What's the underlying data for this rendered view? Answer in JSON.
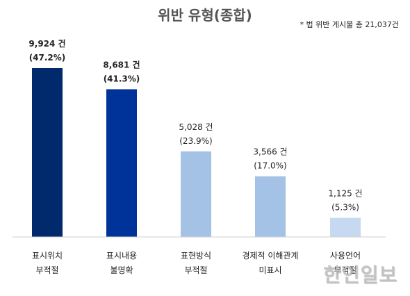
{
  "chart_data": {
    "type": "bar",
    "title": "위반 유형(종합)",
    "note": "* 법 위반 게시물 총 21,037건",
    "unit": "건",
    "categories": [
      [
        "표시위치",
        "부적절"
      ],
      [
        "표시내용",
        "불명확"
      ],
      [
        "표현방식",
        "부적절"
      ],
      [
        "경제적 이해관계",
        "미표시"
      ],
      [
        "사용언어",
        "부적절"
      ]
    ],
    "values": [
      9924,
      8681,
      5028,
      3566,
      1125
    ],
    "value_labels": [
      "9,924 건",
      "8,681 건",
      "5,028 건",
      "3,566 건",
      "1,125 건"
    ],
    "percent_labels": [
      "(47.2%)",
      "(41.3%)",
      "(23.9%)",
      "(17.0%)",
      "(5.3%)"
    ],
    "bold_labels": [
      true,
      true,
      false,
      false,
      false
    ],
    "colors": [
      "#002a6b",
      "#003399",
      "#a4c2e6",
      "#a4c2e6",
      "#c6d9f0"
    ],
    "ylim": [
      0,
      9924
    ]
  },
  "watermark": "한인일보"
}
